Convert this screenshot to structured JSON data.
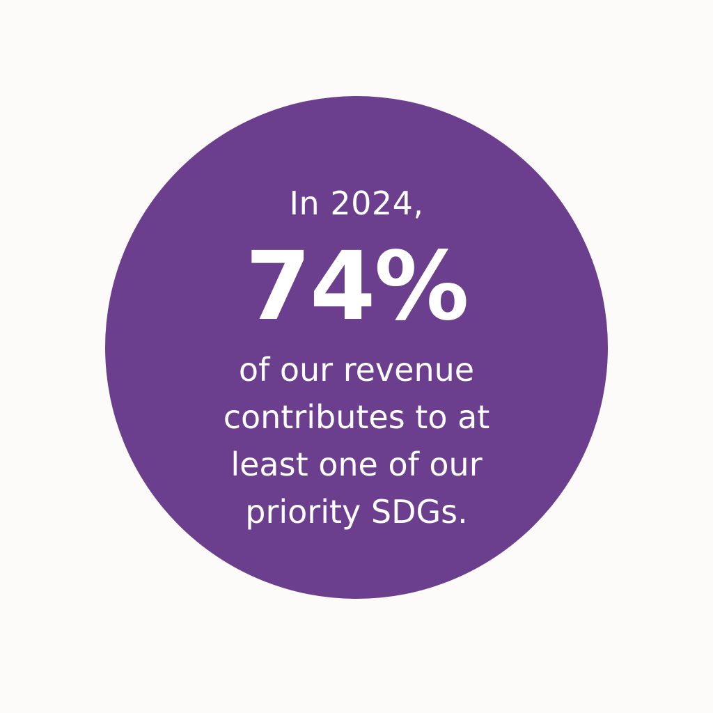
{
  "colors": {
    "background": "#fcfbfa",
    "circle": "#6b3f8d",
    "text": "#ffffff"
  },
  "stat": {
    "intro": "In 2024,",
    "value": "74%",
    "description_lines": [
      "of our revenue",
      "contributes to at",
      "least one of our",
      "priority SDGs."
    ]
  }
}
